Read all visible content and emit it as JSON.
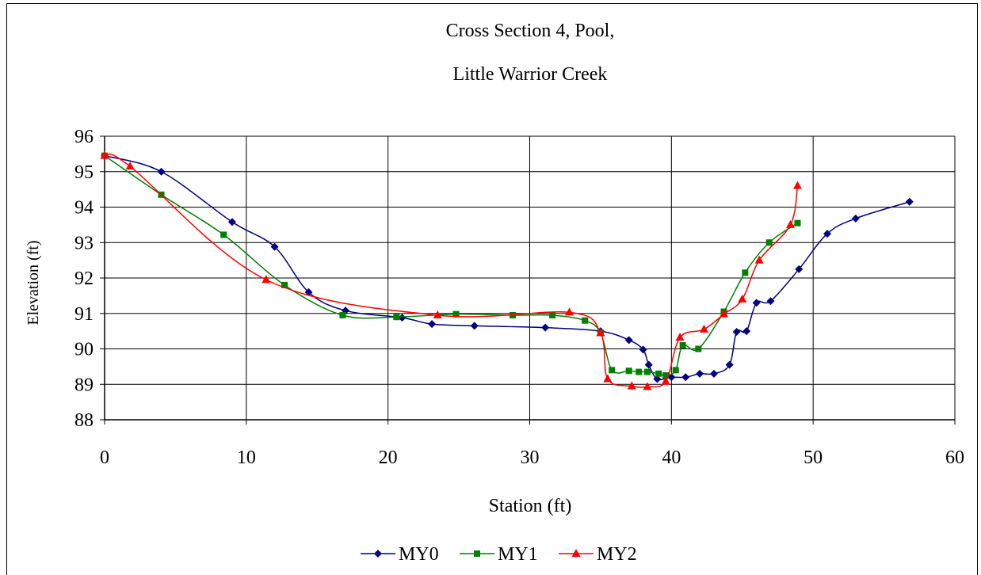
{
  "chart_data": {
    "type": "line",
    "title_lines": [
      "Cross Section 4, Pool,",
      "Little Warrior Creek"
    ],
    "xlabel": "Station (ft)",
    "ylabel": "Elevation (ft)",
    "xlim": [
      0,
      60
    ],
    "ylim": [
      88,
      96
    ],
    "xticks": [
      0,
      10,
      20,
      30,
      40,
      50,
      60
    ],
    "yticks": [
      88,
      89,
      90,
      91,
      92,
      93,
      94,
      95,
      96
    ],
    "grid": true,
    "legend_position": "bottom",
    "series": [
      {
        "name": "MY0",
        "color": "#000080",
        "marker": "diamond",
        "points": [
          [
            0,
            95.45
          ],
          [
            4,
            95.0
          ],
          [
            9,
            93.58
          ],
          [
            12,
            92.88
          ],
          [
            14.4,
            91.6
          ],
          [
            17,
            91.08
          ],
          [
            21,
            90.88
          ],
          [
            23.1,
            90.7
          ],
          [
            26.1,
            90.65
          ],
          [
            31.1,
            90.6
          ],
          [
            35,
            90.5
          ],
          [
            37,
            90.25
          ],
          [
            38,
            89.98
          ],
          [
            38.4,
            89.55
          ],
          [
            39,
            89.15
          ],
          [
            40,
            89.2
          ],
          [
            41,
            89.2
          ],
          [
            42,
            89.3
          ],
          [
            43,
            89.3
          ],
          [
            44.1,
            89.55
          ],
          [
            44.6,
            90.48
          ],
          [
            45.3,
            90.5
          ],
          [
            46,
            91.3
          ],
          [
            47,
            91.35
          ],
          [
            49,
            92.25
          ],
          [
            51,
            93.25
          ],
          [
            53,
            93.68
          ],
          [
            56.8,
            94.15
          ]
        ]
      },
      {
        "name": "MY1",
        "color": "#008000",
        "marker": "square",
        "points": [
          [
            0,
            95.45
          ],
          [
            4,
            94.35
          ],
          [
            8.4,
            93.22
          ],
          [
            12.7,
            91.8
          ],
          [
            16.8,
            90.95
          ],
          [
            20.6,
            90.9
          ],
          [
            24.8,
            90.98
          ],
          [
            28.8,
            90.95
          ],
          [
            31.6,
            90.95
          ],
          [
            33.9,
            90.8
          ],
          [
            35,
            90.45
          ],
          [
            35.8,
            89.4
          ],
          [
            37,
            89.38
          ],
          [
            37.7,
            89.35
          ],
          [
            38.3,
            89.35
          ],
          [
            39.1,
            89.3
          ],
          [
            39.6,
            89.25
          ],
          [
            40.3,
            89.4
          ],
          [
            40.8,
            90.1
          ],
          [
            41.9,
            90.0
          ],
          [
            43.7,
            91.05
          ],
          [
            45.2,
            92.15
          ],
          [
            46.9,
            93.0
          ],
          [
            48.9,
            93.55
          ]
        ]
      },
      {
        "name": "MY2",
        "color": "#ff0000",
        "marker": "triangle",
        "points": [
          [
            0,
            95.45
          ],
          [
            1.8,
            95.15
          ],
          [
            11.4,
            91.95
          ],
          [
            23.5,
            90.95
          ],
          [
            32.8,
            91.03
          ],
          [
            35,
            90.45
          ],
          [
            35.5,
            89.15
          ],
          [
            37.2,
            88.95
          ],
          [
            38.3,
            88.93
          ],
          [
            39.6,
            89.08
          ],
          [
            40.6,
            90.32
          ],
          [
            42.3,
            90.55
          ],
          [
            43.7,
            90.98
          ],
          [
            45,
            91.4
          ],
          [
            46.2,
            92.5
          ],
          [
            48.4,
            93.5
          ],
          [
            48.9,
            94.6
          ]
        ]
      }
    ]
  }
}
